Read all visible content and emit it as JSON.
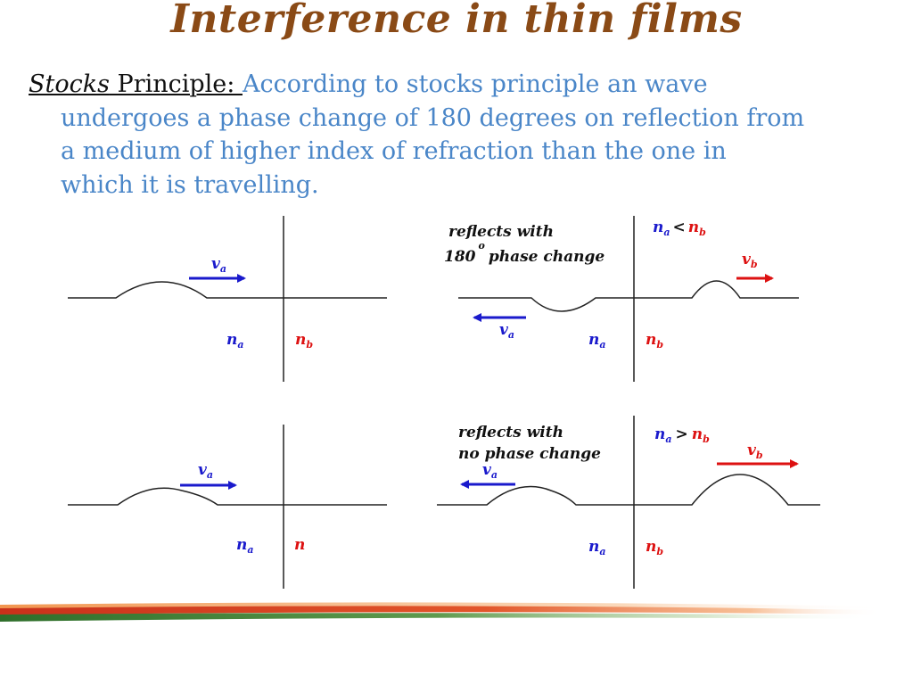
{
  "title": "Interference in thin films",
  "paragraph": {
    "term": "Stocks",
    "label": " Principle: ",
    "line1": "According to stocks principle an wave",
    "line2": "undergoes a phase change of 180 degrees on reflection from",
    "line3": "a medium of higher index of refraction than the one in",
    "line4": "which it is travelling."
  },
  "colors": {
    "title": "#8a4a16",
    "body_text": "#4a86c8",
    "medium_a": "#1a1acc",
    "medium_b": "#dd1111"
  },
  "diagrams": {
    "top_left": {
      "velocity": "v",
      "velocity_sub": "a",
      "na": "n",
      "na_sub": "a",
      "nb": "n",
      "nb_sub": "b"
    },
    "top_right": {
      "caption_line1": "reflects with",
      "caption_line2_num": "180",
      "caption_line2_deg": "o",
      "caption_line2_rest": "phase change",
      "relation_a": "n",
      "relation_a_sub": "a",
      "relation_op": "<",
      "relation_b": "n",
      "relation_b_sub": "b",
      "velocity_b": "v",
      "velocity_b_sub": "b",
      "velocity_a": "v",
      "velocity_a_sub": "a",
      "na": "n",
      "na_sub": "a",
      "nb": "n",
      "nb_sub": "b"
    },
    "bottom_left": {
      "velocity": "v",
      "velocity_sub": "a",
      "na": "n",
      "na_sub": "a",
      "n": "n"
    },
    "bottom_right": {
      "caption_line1": "reflects with",
      "caption_line2": "no phase change",
      "relation_a": "n",
      "relation_a_sub": "a",
      "relation_op": ">",
      "relation_b": "n",
      "relation_b_sub": "b",
      "velocity_b": "v",
      "velocity_b_sub": "b",
      "velocity_a": "v",
      "velocity_a_sub": "a",
      "na": "n",
      "na_sub": "a",
      "nb": "n",
      "nb_sub": "b"
    }
  }
}
